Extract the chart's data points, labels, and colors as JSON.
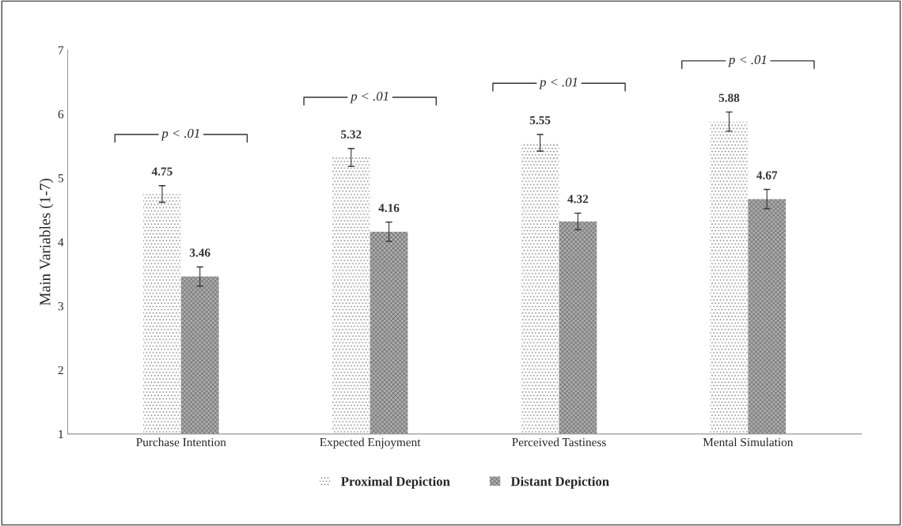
{
  "chart_data": {
    "type": "bar",
    "ylabel": "Main Variables (1-7)",
    "categories": [
      "Purchase Intention",
      "Expected Enjoyment",
      "Perceived Tastiness",
      "Mental Simulation"
    ],
    "series": [
      {
        "name": "Proximal Depiction",
        "color": "#ffffff",
        "values": [
          4.75,
          5.32,
          5.55,
          5.88
        ],
        "errors": [
          0.13,
          0.14,
          0.13,
          0.15
        ]
      },
      {
        "name": "Distant Depiction",
        "color": "#b0b0b0",
        "values": [
          3.46,
          4.16,
          4.32,
          4.67
        ],
        "errors": [
          0.15,
          0.15,
          0.13,
          0.15
        ]
      }
    ],
    "ylim": [
      1,
      7
    ],
    "yticks": [
      1,
      2,
      3,
      4,
      5,
      6,
      7
    ],
    "data_labels": true,
    "grid": false,
    "legend": "bottom",
    "annotations": [
      "p < .01",
      "p < .01",
      "p < .01",
      "p < .01"
    ]
  }
}
